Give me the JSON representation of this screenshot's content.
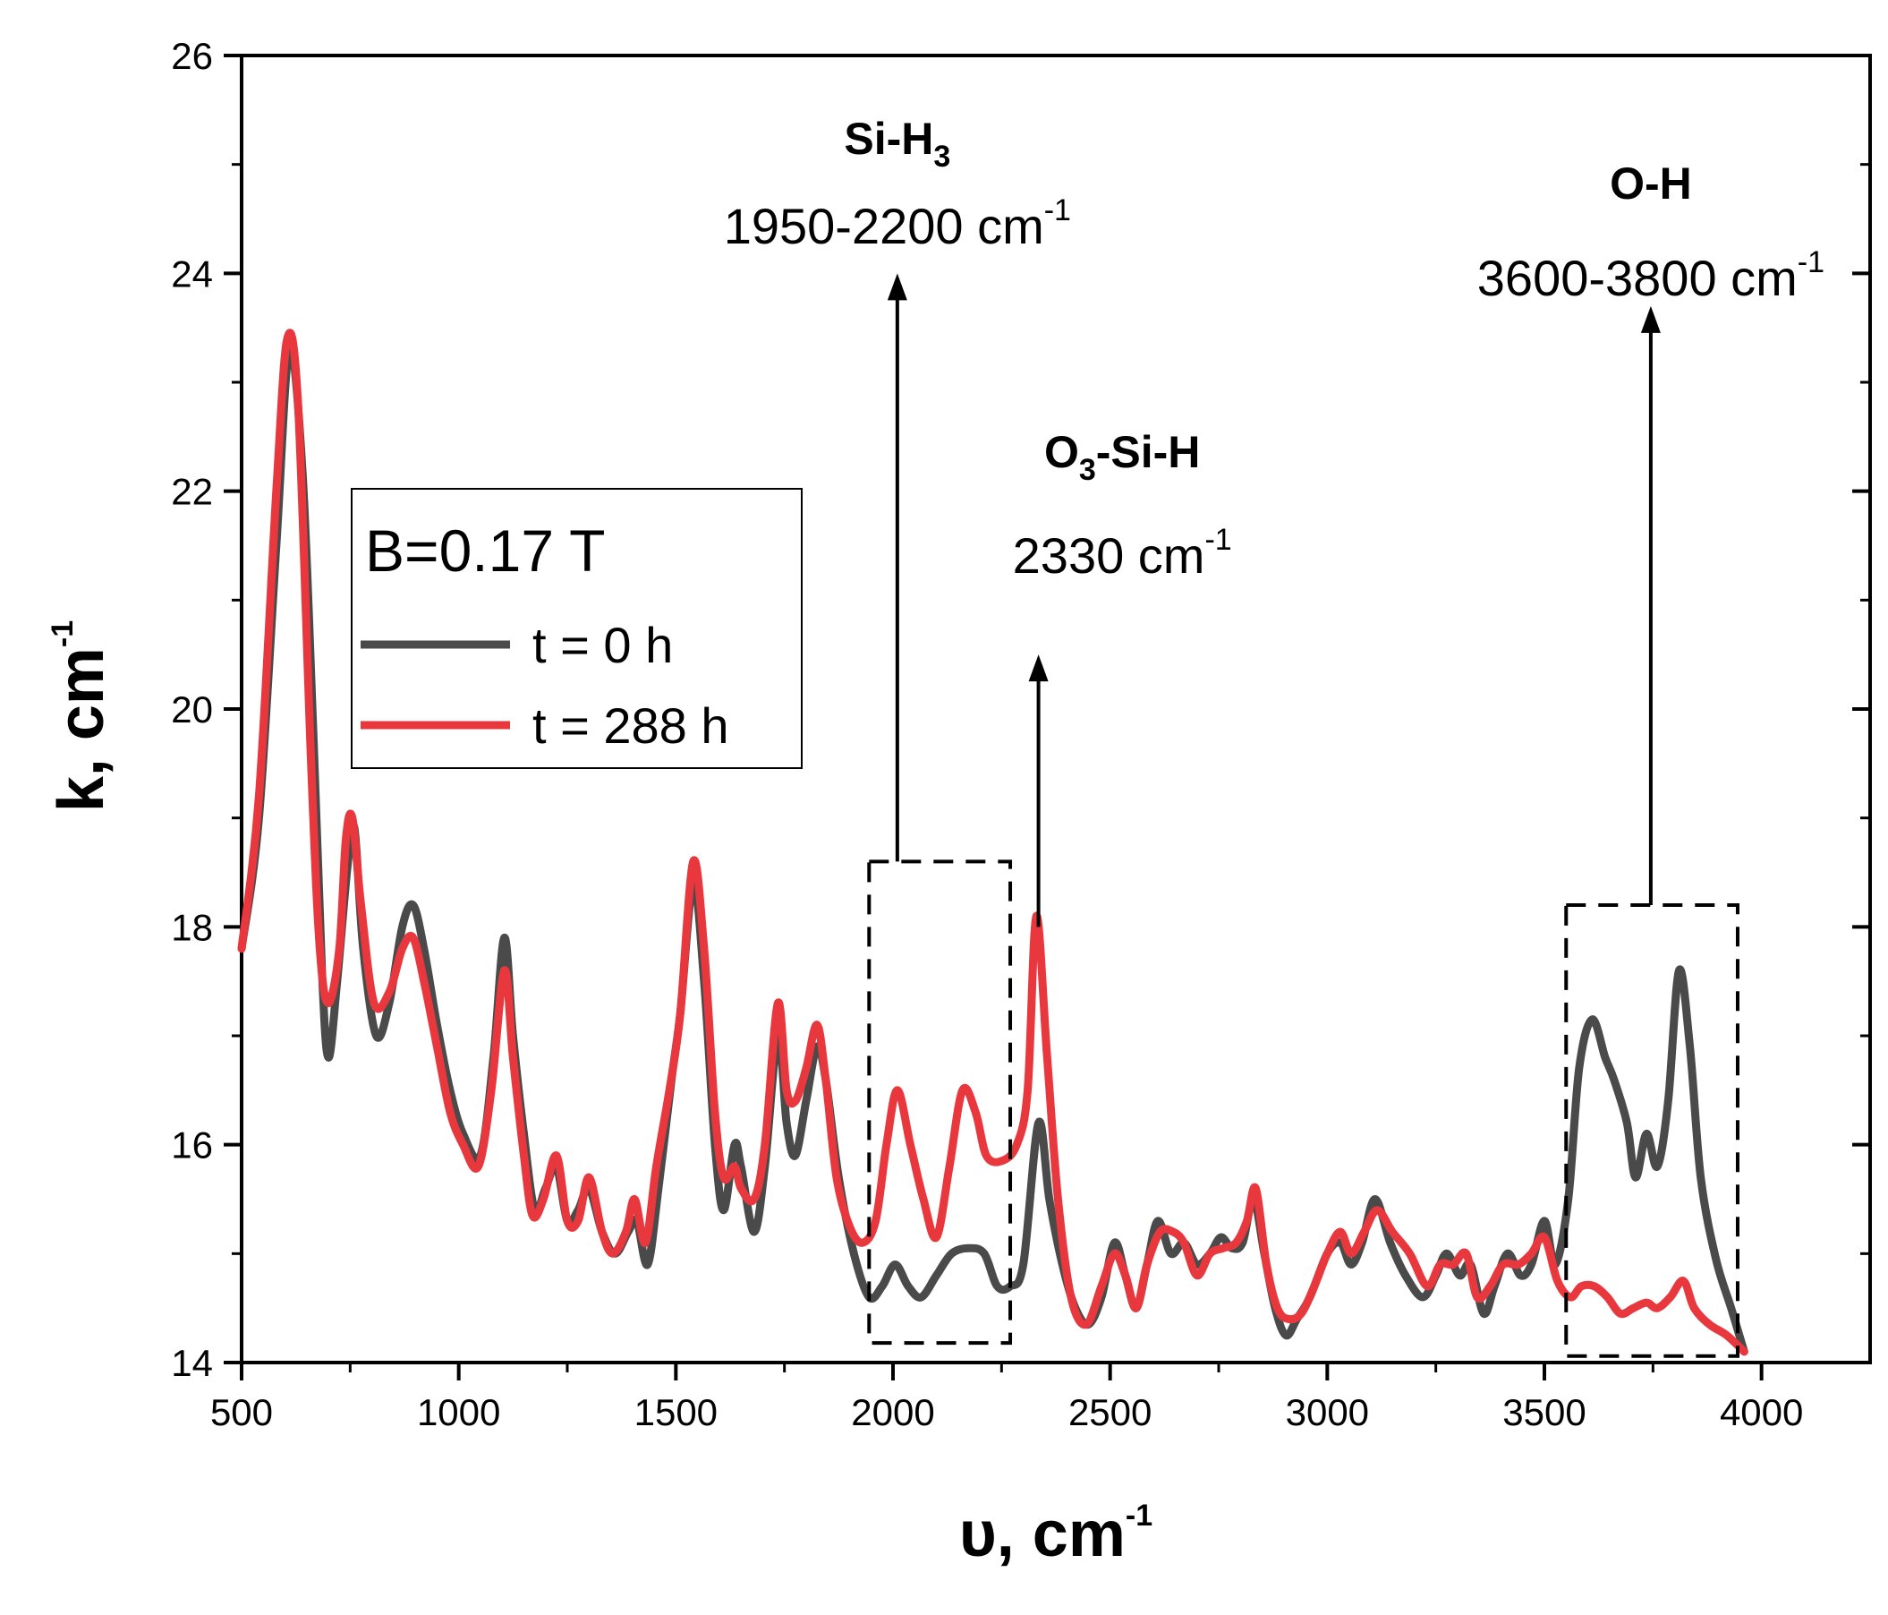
{
  "chart_data": {
    "type": "line",
    "xlabel": "υ, cm",
    "xlabel_sup": "-1",
    "ylabel": "k, cm",
    "ylabel_sup": "-1",
    "xlim": [
      500,
      4250
    ],
    "ylim": [
      14,
      26
    ],
    "xticks": [
      500,
      1000,
      1500,
      2000,
      2500,
      3000,
      3500,
      4000
    ],
    "yticks": [
      14,
      16,
      18,
      20,
      22,
      24,
      26
    ],
    "legend": {
      "title": "B=0.17 T",
      "position": "upper-left"
    },
    "series": [
      {
        "name": "t = 0 h",
        "color": "#4a4a4a",
        "points": [
          [
            500,
            17.8
          ],
          [
            540,
            19.0
          ],
          [
            580,
            21.5
          ],
          [
            610,
            23.3
          ],
          [
            640,
            22.2
          ],
          [
            665,
            19.8
          ],
          [
            685,
            17.6
          ],
          [
            700,
            16.8
          ],
          [
            720,
            17.5
          ],
          [
            745,
            18.6
          ],
          [
            760,
            18.9
          ],
          [
            780,
            17.8
          ],
          [
            810,
            17.0
          ],
          [
            840,
            17.3
          ],
          [
            870,
            18.0
          ],
          [
            895,
            18.2
          ],
          [
            920,
            17.8
          ],
          [
            950,
            17.1
          ],
          [
            980,
            16.5
          ],
          [
            1010,
            16.1
          ],
          [
            1050,
            15.9
          ],
          [
            1080,
            16.8
          ],
          [
            1105,
            17.9
          ],
          [
            1125,
            17.0
          ],
          [
            1150,
            16.1
          ],
          [
            1175,
            15.4
          ],
          [
            1200,
            15.6
          ],
          [
            1225,
            15.8
          ],
          [
            1250,
            15.3
          ],
          [
            1275,
            15.4
          ],
          [
            1300,
            15.6
          ],
          [
            1330,
            15.2
          ],
          [
            1360,
            15.0
          ],
          [
            1390,
            15.2
          ],
          [
            1410,
            15.3
          ],
          [
            1435,
            14.9
          ],
          [
            1460,
            15.6
          ],
          [
            1490,
            16.6
          ],
          [
            1510,
            17.2
          ],
          [
            1540,
            18.4
          ],
          [
            1565,
            17.5
          ],
          [
            1590,
            16.0
          ],
          [
            1610,
            15.4
          ],
          [
            1635,
            16.0
          ],
          [
            1650,
            15.8
          ],
          [
            1680,
            15.2
          ],
          [
            1705,
            15.8
          ],
          [
            1735,
            17.0
          ],
          [
            1755,
            16.2
          ],
          [
            1775,
            15.9
          ],
          [
            1800,
            16.4
          ],
          [
            1825,
            16.9
          ],
          [
            1845,
            16.6
          ],
          [
            1875,
            15.7
          ],
          [
            1910,
            15.0
          ],
          [
            1945,
            14.6
          ],
          [
            1975,
            14.7
          ],
          [
            2005,
            14.9
          ],
          [
            2035,
            14.7
          ],
          [
            2065,
            14.6
          ],
          [
            2100,
            14.8
          ],
          [
            2135,
            15.0
          ],
          [
            2175,
            15.05
          ],
          [
            2210,
            15.0
          ],
          [
            2240,
            14.7
          ],
          [
            2270,
            14.7
          ],
          [
            2300,
            14.9
          ],
          [
            2335,
            16.2
          ],
          [
            2360,
            15.5
          ],
          [
            2390,
            14.9
          ],
          [
            2420,
            14.5
          ],
          [
            2450,
            14.35
          ],
          [
            2480,
            14.6
          ],
          [
            2510,
            15.1
          ],
          [
            2535,
            14.8
          ],
          [
            2560,
            14.5
          ],
          [
            2585,
            14.9
          ],
          [
            2610,
            15.3
          ],
          [
            2640,
            15.0
          ],
          [
            2670,
            15.1
          ],
          [
            2700,
            14.9
          ],
          [
            2730,
            15.0
          ],
          [
            2755,
            15.15
          ],
          [
            2780,
            15.05
          ],
          [
            2805,
            15.1
          ],
          [
            2830,
            15.5
          ],
          [
            2855,
            15.0
          ],
          [
            2880,
            14.5
          ],
          [
            2905,
            14.25
          ],
          [
            2930,
            14.4
          ],
          [
            2960,
            14.6
          ],
          [
            3000,
            15.0
          ],
          [
            3030,
            15.1
          ],
          [
            3055,
            14.9
          ],
          [
            3080,
            15.1
          ],
          [
            3110,
            15.5
          ],
          [
            3145,
            15.1
          ],
          [
            3180,
            14.8
          ],
          [
            3220,
            14.6
          ],
          [
            3250,
            14.8
          ],
          [
            3275,
            15.0
          ],
          [
            3305,
            14.8
          ],
          [
            3330,
            14.9
          ],
          [
            3360,
            14.45
          ],
          [
            3385,
            14.7
          ],
          [
            3415,
            15.0
          ],
          [
            3445,
            14.8
          ],
          [
            3470,
            14.9
          ],
          [
            3500,
            15.3
          ],
          [
            3525,
            14.9
          ],
          [
            3555,
            15.5
          ],
          [
            3580,
            16.7
          ],
          [
            3610,
            17.15
          ],
          [
            3640,
            16.8
          ],
          [
            3660,
            16.6
          ],
          [
            3690,
            16.2
          ],
          [
            3710,
            15.7
          ],
          [
            3735,
            16.1
          ],
          [
            3760,
            15.8
          ],
          [
            3785,
            16.4
          ],
          [
            3810,
            17.6
          ],
          [
            3835,
            16.9
          ],
          [
            3860,
            15.7
          ],
          [
            3895,
            14.95
          ],
          [
            3930,
            14.5
          ],
          [
            3960,
            14.1
          ]
        ]
      },
      {
        "name": "t = 288 h",
        "color": "#e8383d",
        "points": [
          [
            500,
            17.8
          ],
          [
            540,
            19.2
          ],
          [
            580,
            22.0
          ],
          [
            605,
            23.4
          ],
          [
            630,
            22.8
          ],
          [
            660,
            19.5
          ],
          [
            680,
            17.8
          ],
          [
            700,
            17.3
          ],
          [
            725,
            17.8
          ],
          [
            740,
            18.8
          ],
          [
            755,
            19.0
          ],
          [
            775,
            18.2
          ],
          [
            805,
            17.3
          ],
          [
            840,
            17.4
          ],
          [
            870,
            17.8
          ],
          [
            895,
            17.9
          ],
          [
            920,
            17.5
          ],
          [
            950,
            16.9
          ],
          [
            980,
            16.3
          ],
          [
            1010,
            16.0
          ],
          [
            1045,
            15.8
          ],
          [
            1075,
            16.5
          ],
          [
            1105,
            17.6
          ],
          [
            1125,
            16.8
          ],
          [
            1150,
            15.9
          ],
          [
            1170,
            15.35
          ],
          [
            1195,
            15.5
          ],
          [
            1225,
            15.9
          ],
          [
            1250,
            15.3
          ],
          [
            1275,
            15.3
          ],
          [
            1300,
            15.7
          ],
          [
            1330,
            15.2
          ],
          [
            1355,
            15.0
          ],
          [
            1385,
            15.2
          ],
          [
            1405,
            15.5
          ],
          [
            1430,
            15.1
          ],
          [
            1455,
            15.8
          ],
          [
            1485,
            16.5
          ],
          [
            1510,
            17.2
          ],
          [
            1540,
            18.6
          ],
          [
            1565,
            17.8
          ],
          [
            1590,
            16.3
          ],
          [
            1610,
            15.7
          ],
          [
            1635,
            15.8
          ],
          [
            1650,
            15.6
          ],
          [
            1680,
            15.5
          ],
          [
            1705,
            16.0
          ],
          [
            1735,
            17.3
          ],
          [
            1755,
            16.5
          ],
          [
            1775,
            16.4
          ],
          [
            1800,
            16.7
          ],
          [
            1825,
            17.1
          ],
          [
            1845,
            16.6
          ],
          [
            1870,
            15.7
          ],
          [
            1900,
            15.25
          ],
          [
            1930,
            15.1
          ],
          [
            1960,
            15.3
          ],
          [
            1985,
            16.0
          ],
          [
            2010,
            16.5
          ],
          [
            2040,
            16.0
          ],
          [
            2070,
            15.5
          ],
          [
            2100,
            15.15
          ],
          [
            2130,
            15.8
          ],
          [
            2160,
            16.5
          ],
          [
            2190,
            16.3
          ],
          [
            2215,
            15.9
          ],
          [
            2250,
            15.85
          ],
          [
            2285,
            16.0
          ],
          [
            2310,
            16.5
          ],
          [
            2330,
            18.1
          ],
          [
            2355,
            16.8
          ],
          [
            2380,
            15.5
          ],
          [
            2410,
            14.6
          ],
          [
            2445,
            14.35
          ],
          [
            2480,
            14.7
          ],
          [
            2510,
            15.0
          ],
          [
            2535,
            14.8
          ],
          [
            2560,
            14.5
          ],
          [
            2585,
            14.9
          ],
          [
            2615,
            15.2
          ],
          [
            2645,
            15.2
          ],
          [
            2670,
            15.1
          ],
          [
            2700,
            14.8
          ],
          [
            2730,
            15.0
          ],
          [
            2760,
            15.05
          ],
          [
            2790,
            15.1
          ],
          [
            2815,
            15.3
          ],
          [
            2835,
            15.6
          ],
          [
            2860,
            14.9
          ],
          [
            2885,
            14.5
          ],
          [
            2910,
            14.4
          ],
          [
            2940,
            14.45
          ],
          [
            2970,
            14.7
          ],
          [
            3000,
            15.0
          ],
          [
            3030,
            15.2
          ],
          [
            3055,
            15.0
          ],
          [
            3085,
            15.2
          ],
          [
            3115,
            15.4
          ],
          [
            3150,
            15.2
          ],
          [
            3190,
            15.0
          ],
          [
            3230,
            14.7
          ],
          [
            3260,
            14.9
          ],
          [
            3290,
            14.9
          ],
          [
            3320,
            15.0
          ],
          [
            3345,
            14.6
          ],
          [
            3375,
            14.7
          ],
          [
            3405,
            14.9
          ],
          [
            3440,
            14.9
          ],
          [
            3470,
            15.0
          ],
          [
            3500,
            15.15
          ],
          [
            3530,
            14.75
          ],
          [
            3560,
            14.6
          ],
          [
            3585,
            14.7
          ],
          [
            3615,
            14.7
          ],
          [
            3645,
            14.6
          ],
          [
            3675,
            14.45
          ],
          [
            3705,
            14.5
          ],
          [
            3735,
            14.55
          ],
          [
            3760,
            14.5
          ],
          [
            3790,
            14.6
          ],
          [
            3820,
            14.75
          ],
          [
            3845,
            14.5
          ],
          [
            3880,
            14.35
          ],
          [
            3920,
            14.25
          ],
          [
            3960,
            14.1
          ]
        ]
      }
    ],
    "annotations": [
      {
        "label_main": "Si-H",
        "label_sub": "3",
        "label_rest": "",
        "range_text": "1950-2200 cm",
        "range_sup": "-1",
        "box": {
          "x0": 1945,
          "x1": 2270,
          "y0": 14.18,
          "y1": 18.6
        },
        "arrow_x": 2010,
        "arrow_from": 18.6,
        "arrow_to": 24.0
      },
      {
        "label_main": "O",
        "label_sub": "3",
        "label_rest": "-Si-H",
        "range_text": "2330 cm",
        "range_sup": "-1",
        "arrow_x": 2335,
        "arrow_from": 18.0,
        "arrow_to": 20.5
      },
      {
        "label_main": "O-H",
        "label_sub": "",
        "label_rest": "",
        "range_text": "3600-3800 cm",
        "range_sup": "-1",
        "box": {
          "x0": 3550,
          "x1": 3945,
          "y0": 14.06,
          "y1": 18.2
        },
        "arrow_x": 3745,
        "arrow_from": 18.2,
        "arrow_to": 23.7
      }
    ]
  }
}
